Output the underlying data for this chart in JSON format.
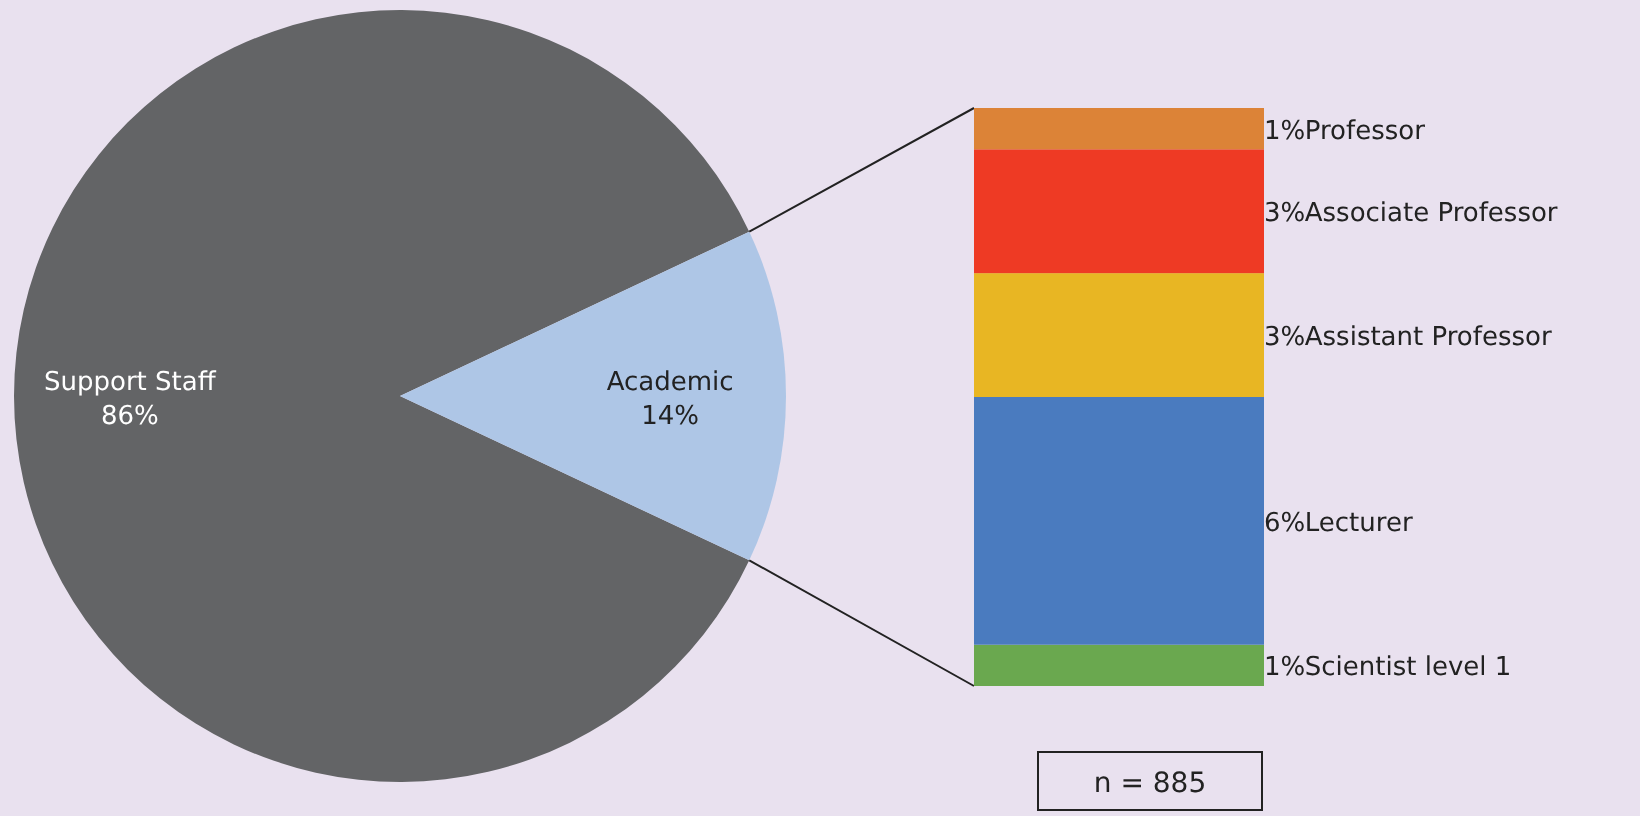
{
  "chart_data": [
    {
      "type": "pie",
      "categories": [
        "Support Staff",
        "Academic"
      ],
      "values": [
        86,
        14
      ],
      "colors": [
        "#636466",
        "#aec6e6"
      ],
      "value_labels": [
        "86%",
        "14%"
      ]
    },
    {
      "type": "bar",
      "stacked": true,
      "categories": [
        null
      ],
      "series": [
        {
          "name": "Scientist level 1",
          "color": "#6aa84f",
          "values": [
            1
          ],
          "value_labels": [
            "1%"
          ]
        },
        {
          "name": "Lecturer",
          "color": "#4a7bbf",
          "values": [
            6
          ],
          "value_labels": [
            "6%"
          ]
        },
        {
          "name": "Assistant Professor",
          "color": "#e8b623",
          "values": [
            3
          ],
          "value_labels": [
            "3%"
          ]
        },
        {
          "name": "Associate Professor",
          "color": "#ee3a24",
          "values": [
            3
          ],
          "value_labels": [
            "3%"
          ]
        },
        {
          "name": "Professor",
          "color": "#dc8337",
          "values": [
            1
          ],
          "value_labels": [
            "1%"
          ]
        }
      ],
      "annotations": [
        "n = 885"
      ]
    }
  ]
}
